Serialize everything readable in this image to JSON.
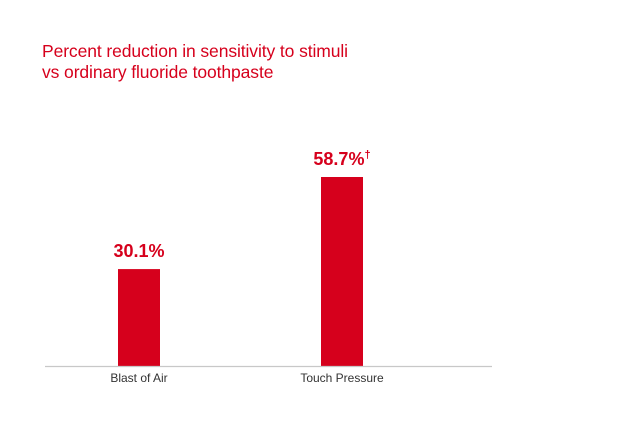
{
  "title": {
    "line1": "Percent reduction in sensitivity to stimuli",
    "line2": "vs ordinary fluoride toothpaste"
  },
  "colors": {
    "accent": "#d6001c",
    "axis": "#c8c8c8",
    "label": "#333333"
  },
  "chart_data": {
    "type": "bar",
    "title": "Percent reduction in sensitivity to stimuli vs ordinary fluoride toothpaste",
    "categories": [
      "Blast of Air",
      "Touch Pressure"
    ],
    "values": [
      30.1,
      58.7
    ],
    "data_labels": [
      "30.1%",
      "58.7%†"
    ],
    "xlabel": "",
    "ylabel": "",
    "ylim": [
      0,
      60
    ],
    "grid": false,
    "legend": "none"
  }
}
